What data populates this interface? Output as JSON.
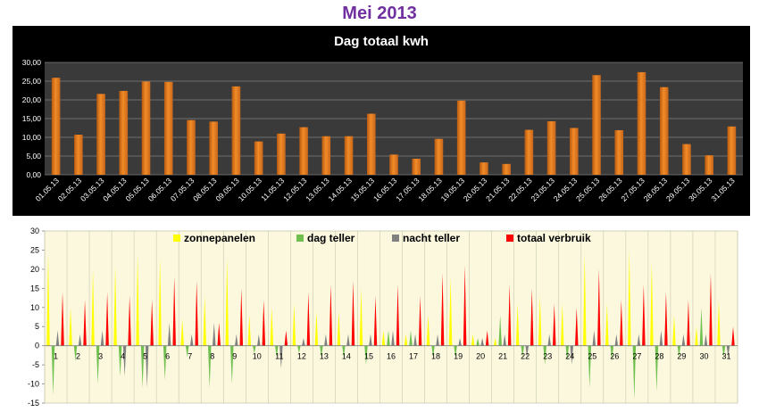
{
  "page_title": "Mei 2013",
  "chart_data": [
    {
      "type": "bar",
      "title": "Dag totaal kwh",
      "categories": [
        "01.05.13",
        "02.05.13",
        "03.05.13",
        "04.05.13",
        "05.05.13",
        "06.05.13",
        "07.05.13",
        "08.05.13",
        "09.05.13",
        "10.05.13",
        "11.05.13",
        "12.05.13",
        "13.05.13",
        "14.05.13",
        "15.05.13",
        "16.05.13",
        "17.05.13",
        "18.05.13",
        "19.05.13",
        "20.05.13",
        "21.05.13",
        "22.05.13",
        "23.05.13",
        "24.05.13",
        "25.05.13",
        "26.05.13",
        "27.05.13",
        "28.05.13",
        "29.05.13",
        "30.05.13",
        "31.05.13"
      ],
      "values": [
        25.9,
        10.7,
        21.6,
        22.4,
        24.9,
        24.8,
        14.6,
        14.2,
        23.6,
        8.9,
        11.0,
        12.7,
        10.3,
        10.3,
        16.3,
        5.4,
        4.3,
        9.6,
        19.8,
        3.3,
        2.9,
        12.0,
        14.3,
        12.5,
        26.6,
        11.9,
        27.4,
        23.4,
        8.2,
        5.2,
        12.9
      ],
      "y_ticks": [
        "0,00",
        "5,00",
        "10,00",
        "15,00",
        "20,00",
        "25,00",
        "30,00"
      ],
      "ylim": [
        0,
        30
      ],
      "grid": true,
      "colors": {
        "bar": "#f28c28",
        "background": "#000000",
        "plot": "#3a3a3a",
        "text": "#ffffff"
      }
    },
    {
      "type": "area",
      "categories": [
        "1",
        "2",
        "3",
        "4",
        "5",
        "6",
        "7",
        "8",
        "9",
        "10",
        "11",
        "12",
        "13",
        "14",
        "15",
        "16",
        "17",
        "18",
        "19",
        "20",
        "21",
        "22",
        "23",
        "24",
        "25",
        "26",
        "27",
        "28",
        "29",
        "30",
        "31"
      ],
      "y_ticks": [
        "-15",
        "-10",
        "-5",
        "0",
        "5",
        "10",
        "15",
        "20",
        "25",
        "30"
      ],
      "ylim": [
        -15,
        30
      ],
      "legend_position": "top",
      "series": [
        {
          "name": "zonnepanelen",
          "color": "#ffff00",
          "values": [
            24,
            10,
            20,
            21,
            24,
            23,
            7,
            13,
            23,
            8,
            10,
            11,
            9,
            9,
            15,
            4,
            3,
            8,
            18,
            3,
            2,
            11,
            13,
            11,
            24,
            11,
            25,
            22,
            8,
            5,
            12
          ]
        },
        {
          "name": "dag teller",
          "color": "#70c050",
          "values": [
            -13,
            -4,
            -10,
            -8,
            -11,
            -9,
            -3,
            -11,
            -10,
            -2,
            -3,
            -2,
            -3,
            -3,
            -5,
            4,
            4,
            -3,
            -3,
            2,
            8,
            -3,
            -5,
            -4,
            -11,
            -4,
            -14,
            -12,
            -3,
            10,
            -3
          ]
        },
        {
          "name": "nacht teller",
          "color": "#808080",
          "values": [
            4,
            3,
            4,
            -8,
            -11,
            6,
            3,
            6,
            3,
            3,
            -6,
            2,
            3,
            3,
            3,
            4,
            3,
            3,
            2,
            2,
            3,
            -3,
            3,
            -5,
            4,
            3,
            3,
            4,
            3,
            3,
            -3
          ]
        },
        {
          "name": "totaal verbruik",
          "color": "#ff0000",
          "values": [
            14,
            12,
            14,
            13,
            12,
            18,
            17,
            6,
            15,
            12,
            4,
            14,
            16,
            17,
            13,
            16,
            13,
            19,
            21,
            4,
            16,
            15,
            11,
            10,
            20,
            12,
            16,
            14,
            12,
            19,
            5
          ]
        }
      ]
    }
  ]
}
